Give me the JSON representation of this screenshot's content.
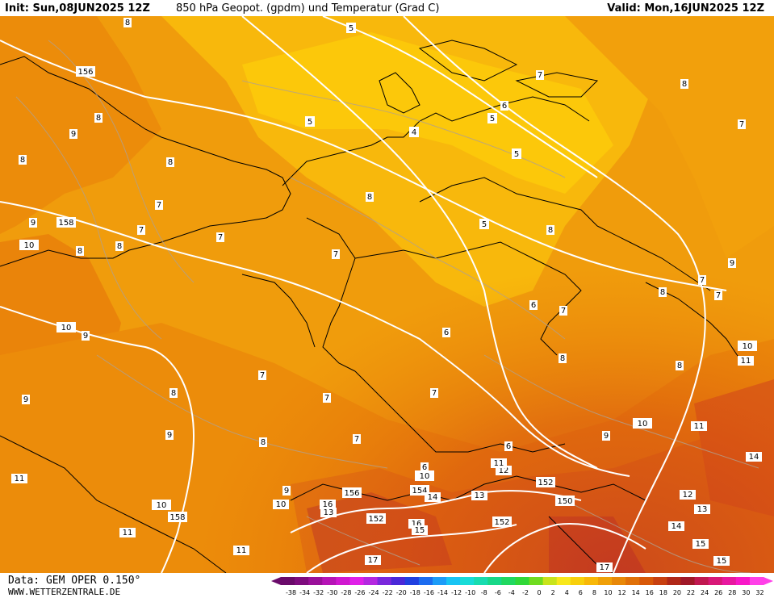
{
  "header": {
    "init": "Init: Sun,08JUN2025 12Z",
    "title": "850 hPa Geopot. (gpdm) und Temperatur (Grad C)",
    "valid": "Valid: Mon,16JUN2025 12Z"
  },
  "footer": {
    "source": "Data: GEM OPER 0.150°",
    "site": "WWW.WETTERZENTRALE.DE"
  },
  "legend": {
    "values": [
      "-38",
      "-34",
      "-32",
      "-30",
      "-28",
      "-26",
      "-24",
      "-22",
      "-20",
      "-18",
      "-16",
      "-14",
      "-12",
      "-10",
      "-8",
      "-6",
      "-4",
      "-2",
      "0",
      "2",
      "4",
      "6",
      "8",
      "10",
      "12",
      "14",
      "16",
      "18",
      "20",
      "22",
      "24",
      "26",
      "28",
      "30",
      "32"
    ],
    "colors": [
      "#6a0a6a",
      "#7e0c7e",
      "#9a109a",
      "#b614b6",
      "#d018d0",
      "#e020e8",
      "#b428e0",
      "#7a28dc",
      "#4a28d8",
      "#2040e0",
      "#1c6cf0",
      "#1c9cf8",
      "#18c4f4",
      "#18dcd8",
      "#18dcb0",
      "#18d888",
      "#20d860",
      "#30d838",
      "#70dc20",
      "#c8e41c",
      "#f8e81c",
      "#f8d00c",
      "#f8b808",
      "#f0a008",
      "#e88808",
      "#e07008",
      "#d85808",
      "#c84010",
      "#b02818",
      "#a01828",
      "#c01850",
      "#d81878",
      "#e818a0",
      "#f818c8",
      "#ff40e8"
    ]
  },
  "map": {
    "isohypse_labels": [
      "156",
      "158",
      "5",
      "5",
      "5",
      "5",
      "5",
      "4",
      "10",
      "10",
      "10",
      "10",
      "10",
      "10",
      "152",
      "154",
      "152",
      "156",
      "158",
      "150",
      "152"
    ],
    "temperature_labels": [
      "8",
      "9",
      "8",
      "8",
      "9",
      "8",
      "7",
      "7",
      "9",
      "7",
      "8",
      "7",
      "7",
      "7",
      "7",
      "7",
      "9",
      "8",
      "9",
      "8",
      "7",
      "8",
      "6",
      "9",
      "8",
      "7",
      "8",
      "6",
      "7",
      "6",
      "7",
      "8",
      "8",
      "6",
      "6",
      "7",
      "8",
      "9",
      "8",
      "9",
      "10",
      "11",
      "11",
      "11",
      "14",
      "12",
      "13",
      "15",
      "16",
      "13",
      "14",
      "15",
      "13",
      "15",
      "14",
      "16",
      "17",
      "17",
      "11",
      "11",
      "12",
      "11"
    ]
  }
}
